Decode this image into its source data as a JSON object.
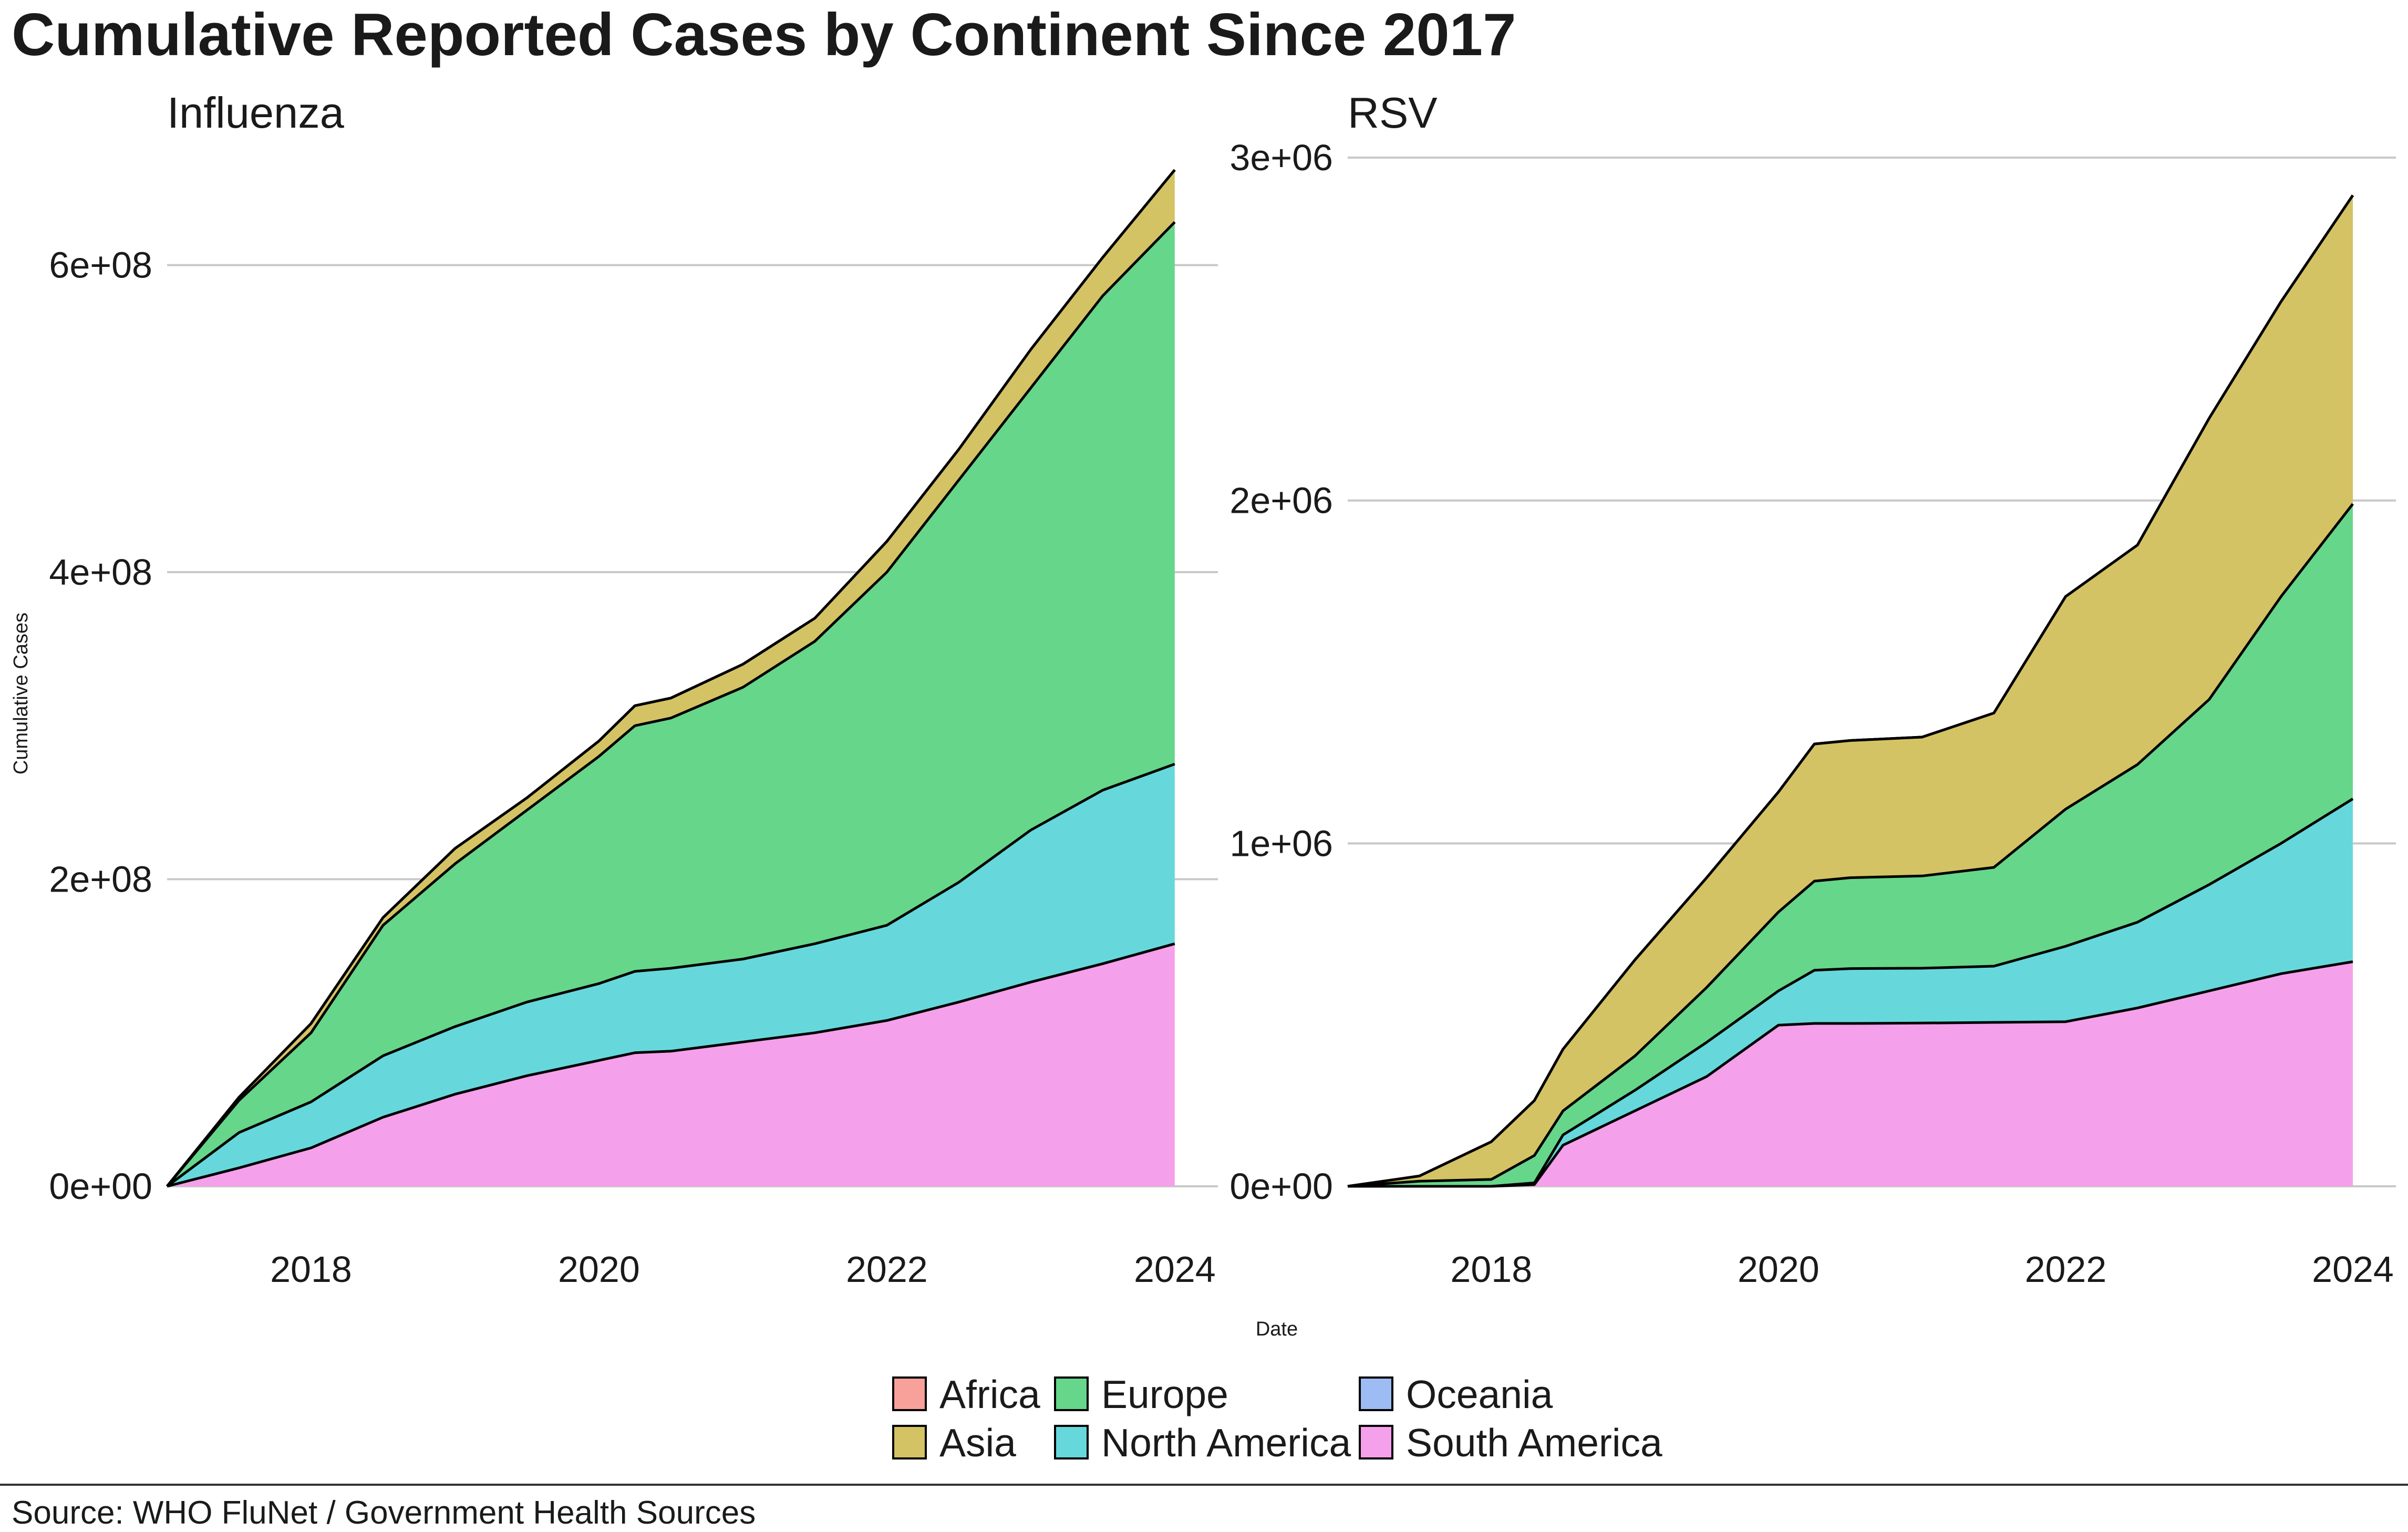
{
  "chart_data": {
    "type": "area",
    "stacked": true,
    "title": "Cumulative Reported Cases by Continent Since 2017",
    "xlabel": "Date",
    "ylabel": "Cumulative Cases",
    "caption": "Source: WHO FluNet / Government Health Sources",
    "legend_position": "bottom",
    "grid": "horizontal",
    "colors": {
      "Africa": "#F8A19A",
      "Asia": "#D4C364",
      "Europe": "#66D68A",
      "North America": "#66D8DC",
      "Oceania": "#9DBCF3",
      "South America": "#F5A0EA"
    },
    "legend": [
      "Africa",
      "Europe",
      "Oceania",
      "Asia",
      "North America",
      "South America"
    ],
    "panels": [
      {
        "subtitle": "Influenza",
        "x": [
          2017.0,
          2017.5,
          2018.0,
          2018.5,
          2019.0,
          2019.5,
          2020.0,
          2020.25,
          2020.5,
          2021.0,
          2021.5,
          2022.0,
          2022.5,
          2023.0,
          2023.5,
          2024.0
        ],
        "xlim": [
          2017.0,
          2024.3
        ],
        "ylim": [
          0,
          670000000
        ],
        "xticks": [
          2018,
          2020,
          2022,
          2024
        ],
        "xtick_labels": [
          "2018",
          "2020",
          "2022",
          "2024"
        ],
        "yticks": [
          0,
          200000000,
          400000000,
          600000000
        ],
        "ytick_labels": [
          "0e+00",
          "2e+08",
          "4e+08",
          "6e+08"
        ],
        "series": [
          {
            "name": "South America",
            "values": [
              0,
              12000000,
              25000000,
              45000000,
              60000000,
              72000000,
              82000000,
              87000000,
              88000000,
              94000000,
              100000000,
              108000000,
              120000000,
              133000000,
              145000000,
              158000000
            ]
          },
          {
            "name": "North America",
            "values": [
              0,
              35000000,
              55000000,
              85000000,
              104000000,
              120000000,
              132000000,
              140000000,
              142000000,
              148000000,
              158000000,
              170000000,
              198000000,
              232000000,
              258000000,
              275000000
            ]
          },
          {
            "name": "Europe",
            "values": [
              0,
              56000000,
              100000000,
              170000000,
              210000000,
              245000000,
              280000000,
              300000000,
              305000000,
              325000000,
              355000000,
              400000000,
              460000000,
              520000000,
              580000000,
              628000000
            ]
          },
          {
            "name": "Asia",
            "values": [
              0,
              58000000,
              106000000,
              175000000,
              220000000,
              253000000,
              290000000,
              313000000,
              318000000,
              340000000,
              370000000,
              420000000,
              480000000,
              545000000,
              605000000,
              662000000
            ]
          },
          {
            "name": "Oceania",
            "values": [
              0,
              58000000,
              106000000,
              175000000,
              220000000,
              253000000,
              290000000,
              313000000,
              318000000,
              340000000,
              370000000,
              420000000,
              480000000,
              545000000,
              605000000,
              662000000
            ]
          },
          {
            "name": "Africa",
            "values": [
              0,
              58000000,
              106000000,
              175000000,
              220000000,
              253000000,
              290000000,
              313000000,
              318000000,
              340000000,
              370000000,
              420000000,
              480000000,
              545000000,
              605000000,
              662000000
            ]
          }
        ]
      },
      {
        "subtitle": "RSV",
        "x": [
          2017.0,
          2017.5,
          2018.0,
          2018.3,
          2018.5,
          2019.0,
          2019.5,
          2020.0,
          2020.25,
          2020.5,
          2021.0,
          2021.5,
          2022.0,
          2022.5,
          2023.0,
          2023.5,
          2024.0
        ],
        "xlim": [
          2017.0,
          2024.3
        ],
        "ylim": [
          0,
          3000000
        ],
        "xticks": [
          2018,
          2020,
          2022,
          2024
        ],
        "xtick_labels": [
          "2018",
          "2020",
          "2022",
          "2024"
        ],
        "yticks": [
          0,
          1000000,
          2000000,
          3000000
        ],
        "ytick_labels": [
          "0e+00",
          "1e+06",
          "2e+06",
          "3e+06"
        ],
        "series": [
          {
            "name": "South America",
            "values": [
              0,
              0,
              0,
              5000,
              120000,
              220000,
              320000,
              470000,
              475000,
              475000,
              476000,
              478000,
              480000,
              520000,
              570000,
              620000,
              655000
            ]
          },
          {
            "name": "North America",
            "values": [
              0,
              0,
              0,
              10000,
              150000,
              280000,
              420000,
              570000,
              630000,
              635000,
              636000,
              642000,
              700000,
              770000,
              880000,
              1000000,
              1130000
            ]
          },
          {
            "name": "Europe",
            "values": [
              0,
              15000,
              20000,
              90000,
              220000,
              380000,
              580000,
              800000,
              890000,
              900000,
              905000,
              930000,
              1100000,
              1230000,
              1420000,
              1720000,
              1990000
            ]
          },
          {
            "name": "Asia",
            "values": [
              0,
              30000,
              130000,
              250000,
              400000,
              660000,
              900000,
              1150000,
              1290000,
              1300000,
              1310000,
              1380000,
              1720000,
              1870000,
              2240000,
              2580000,
              2890000
            ]
          },
          {
            "name": "Oceania",
            "values": [
              0,
              30000,
              130000,
              250000,
              400000,
              660000,
              900000,
              1150000,
              1290000,
              1300000,
              1310000,
              1380000,
              1720000,
              1870000,
              2240000,
              2580000,
              2890000
            ]
          },
          {
            "name": "Africa",
            "values": [
              0,
              30000,
              130000,
              250000,
              400000,
              660000,
              900000,
              1150000,
              1290000,
              1300000,
              1310000,
              1380000,
              1720000,
              1870000,
              2240000,
              2580000,
              2890000
            ]
          }
        ]
      }
    ]
  }
}
